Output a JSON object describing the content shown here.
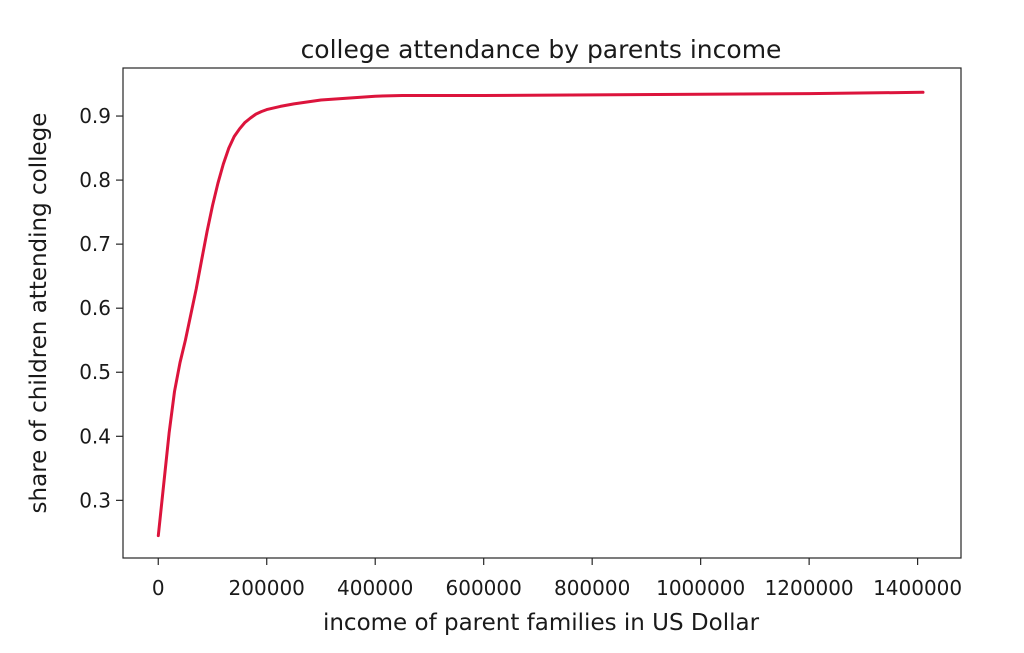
{
  "chart_data": {
    "type": "line",
    "title": "college attendance by parents income",
    "xlabel": "income of parent families in US Dollar",
    "ylabel": "share of children attending college",
    "xlim": [
      -65000,
      1480000
    ],
    "ylim": [
      0.21,
      0.975
    ],
    "x_ticks": [
      0,
      200000,
      400000,
      600000,
      800000,
      1000000,
      1200000,
      1400000
    ],
    "x_tick_labels": [
      "0",
      "200000",
      "400000",
      "600000",
      "800000",
      "1000000",
      "1200000",
      "1400000"
    ],
    "y_ticks": [
      0.3,
      0.4,
      0.5,
      0.6,
      0.7,
      0.8,
      0.9
    ],
    "y_tick_labels": [
      "0.3",
      "0.4",
      "0.5",
      "0.6",
      "0.7",
      "0.8",
      "0.9"
    ],
    "grid": false,
    "legend": "none",
    "series": [
      {
        "color": "#dc143c",
        "x": [
          0,
          10000,
          20000,
          30000,
          40000,
          50000,
          60000,
          70000,
          80000,
          90000,
          100000,
          110000,
          120000,
          130000,
          140000,
          150000,
          160000,
          170000,
          180000,
          190000,
          200000,
          225000,
          250000,
          300000,
          350000,
          400000,
          450000,
          600000,
          800000,
          1000000,
          1200000,
          1410000
        ],
        "y": [
          0.245,
          0.325,
          0.405,
          0.47,
          0.515,
          0.55,
          0.59,
          0.63,
          0.675,
          0.72,
          0.76,
          0.795,
          0.825,
          0.85,
          0.868,
          0.88,
          0.89,
          0.897,
          0.903,
          0.907,
          0.91,
          0.915,
          0.919,
          0.925,
          0.928,
          0.931,
          0.932,
          0.932,
          0.933,
          0.934,
          0.935,
          0.937
        ]
      }
    ]
  }
}
